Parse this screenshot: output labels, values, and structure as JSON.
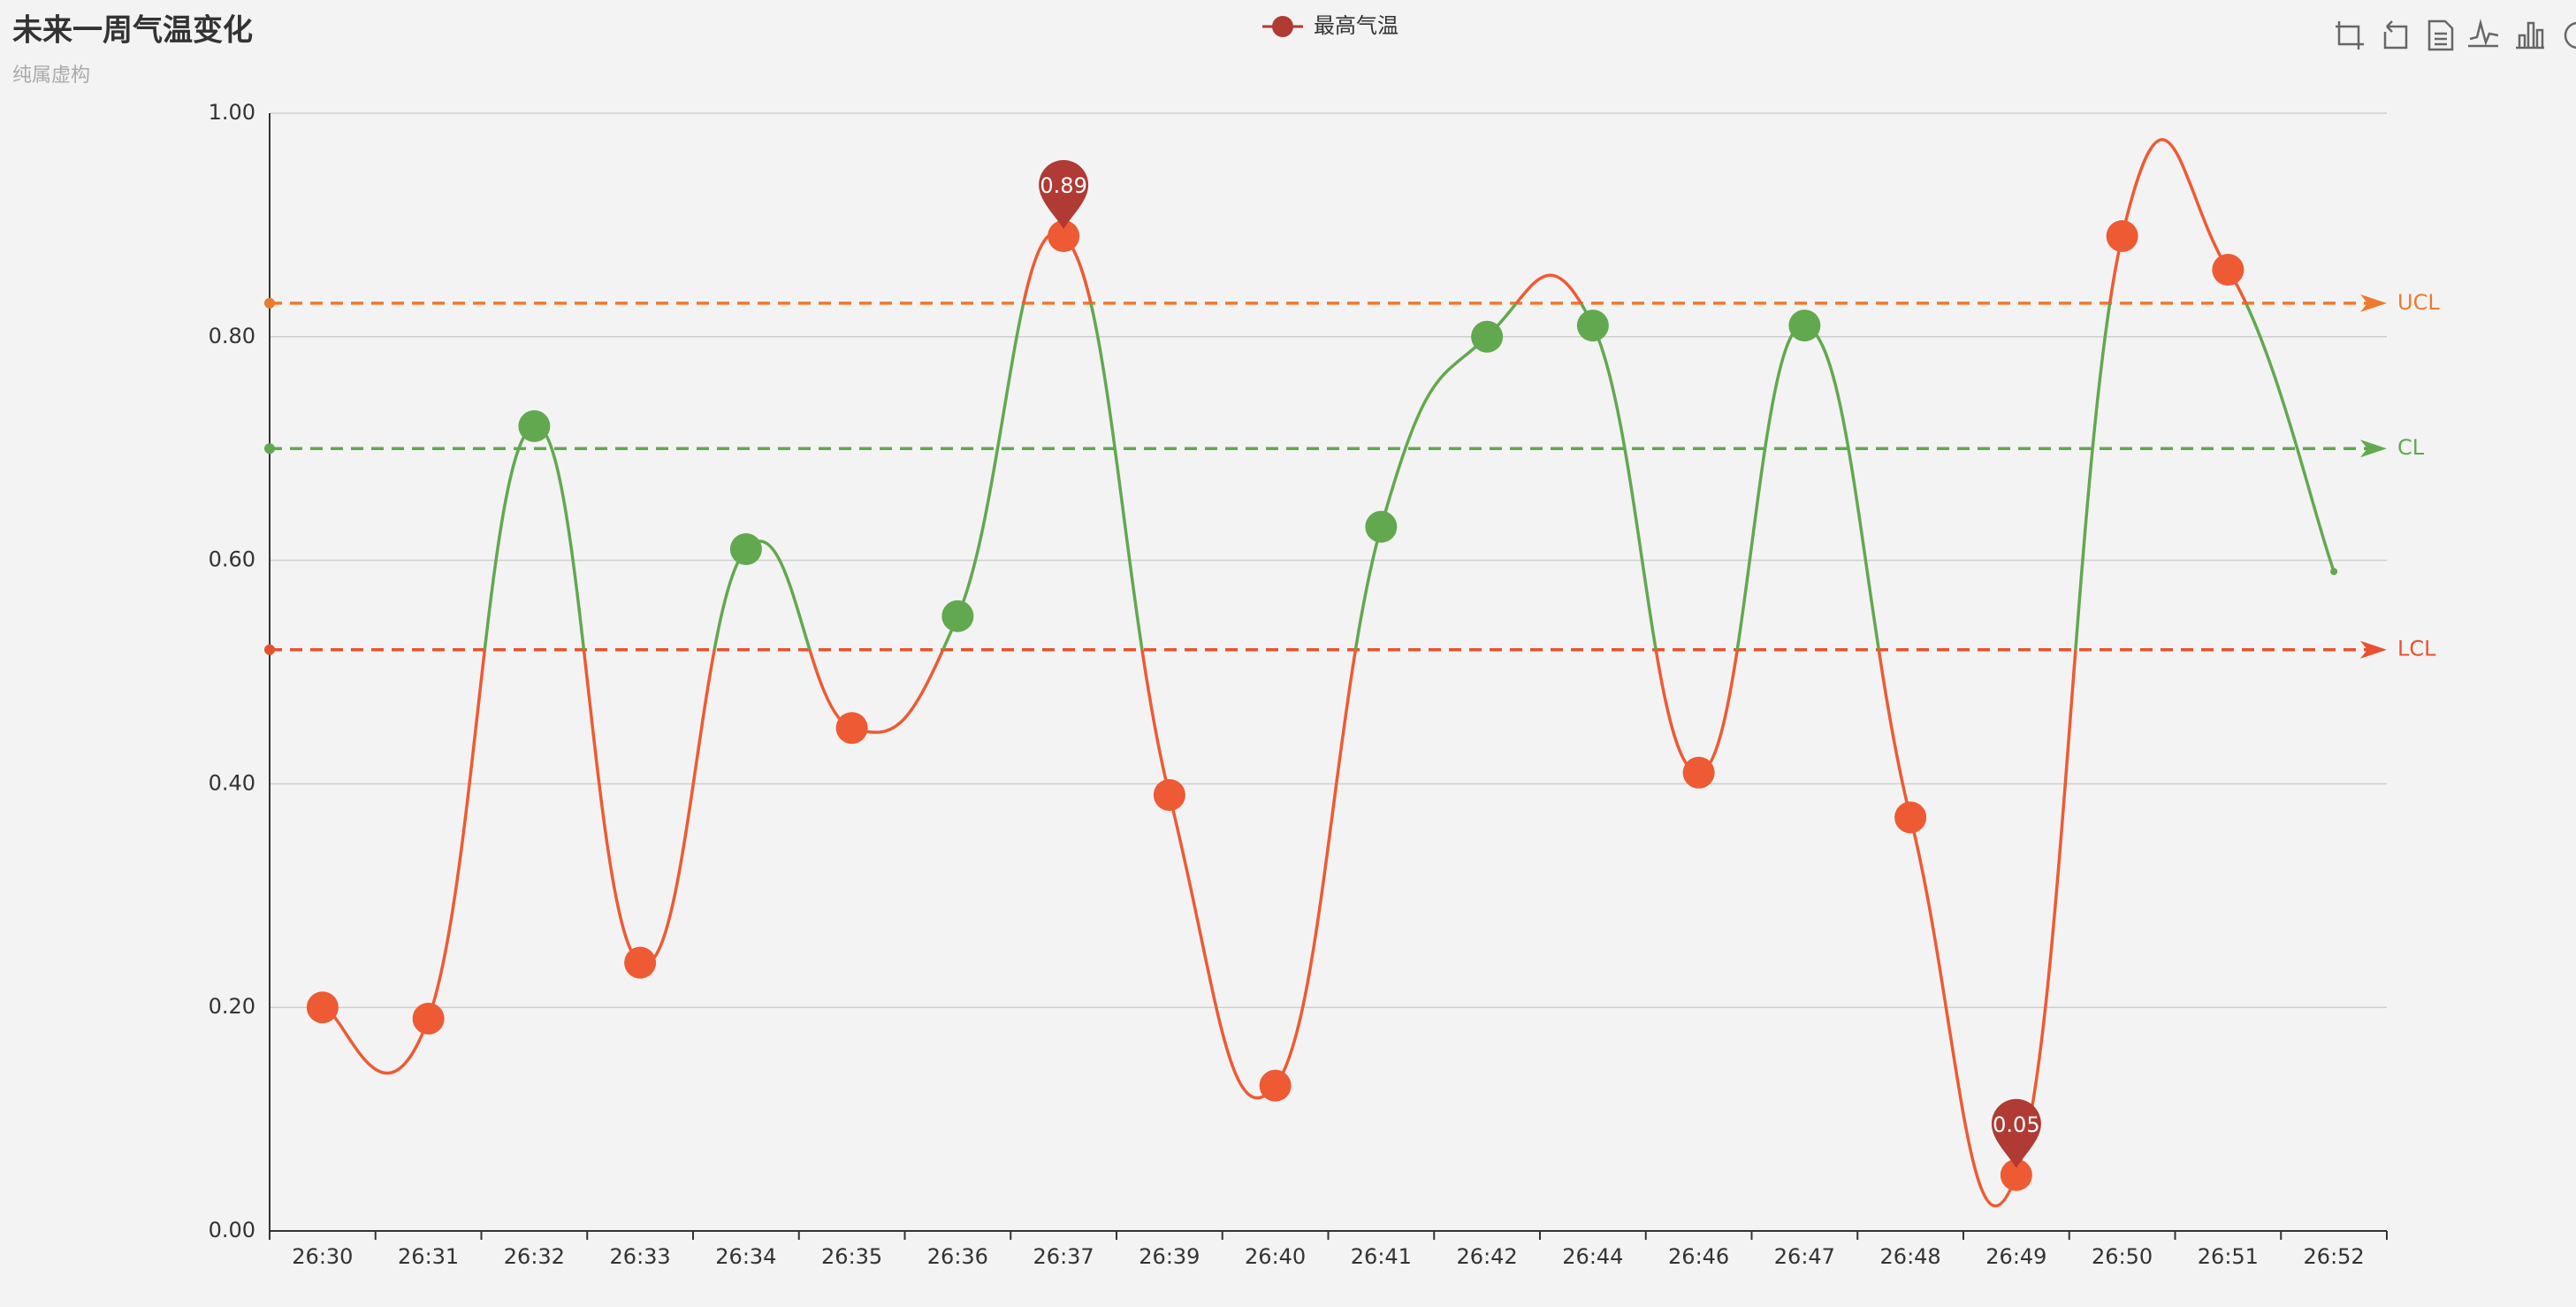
{
  "chart_data": {
    "type": "line",
    "title": "未来一周气温变化",
    "subtitle": "纯属虚构",
    "categories": [
      "26:30",
      "26:31",
      "26:32",
      "26:33",
      "26:34",
      "26:35",
      "26:36",
      "26:37",
      "26:39",
      "26:40",
      "26:41",
      "26:42",
      "26:44",
      "26:46",
      "26:47",
      "26:48",
      "26:49",
      "26:50",
      "26:51",
      "26:52"
    ],
    "series": [
      {
        "name": "最高气温",
        "color": "#b03a34",
        "values": [
          0.2,
          0.19,
          0.72,
          0.24,
          0.61,
          0.45,
          0.55,
          0.89,
          0.39,
          0.13,
          0.63,
          0.8,
          0.81,
          0.41,
          0.81,
          0.37,
          0.05,
          0.89,
          0.86,
          0.59
        ]
      }
    ],
    "ylim": [
      0,
      1
    ],
    "yticks": [
      {
        "value": 0,
        "label": "0.00"
      },
      {
        "value": 0.2,
        "label": "0.20"
      },
      {
        "value": 0.4,
        "label": "0.40"
      },
      {
        "value": 0.6,
        "label": "0.60"
      },
      {
        "value": 0.8,
        "label": "0.80"
      },
      {
        "value": 1,
        "label": "1.00"
      }
    ],
    "grid": true,
    "mark_lines": [
      {
        "label": "UCL",
        "value": 0.83,
        "color": "#ee7a2f"
      },
      {
        "label": "CL",
        "value": 0.7,
        "color": "#62a84f"
      },
      {
        "label": "LCL",
        "value": 0.52,
        "color": "#e8512f"
      }
    ],
    "mark_points": [
      {
        "value": 0.89
      },
      {
        "value": 0.05
      }
    ],
    "visual_map": {
      "in_color": "#62a84f",
      "out_color": "#ee5a33"
    }
  }
}
